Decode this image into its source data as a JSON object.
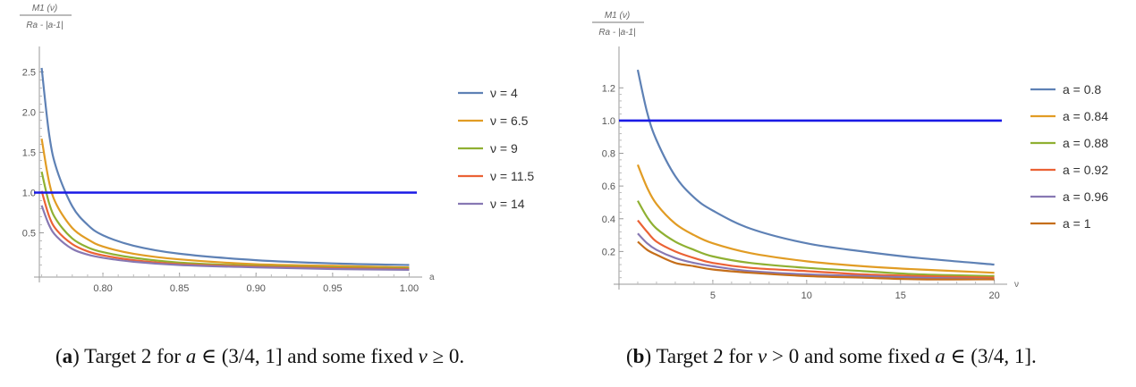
{
  "captions": {
    "a": {
      "tag": "a",
      "pre": " Target 2 for ",
      "var1": "a",
      "mid": " ∈ (3/4, 1] and some fixed ",
      "var2": "ν",
      "post": " ≥ 0."
    },
    "b": {
      "tag": "b",
      "pre": " Target 2 for ",
      "var1": "ν",
      "mid": " > 0 and some fixed ",
      "var2": "a",
      "post": " ∈ (3/4, 1]."
    }
  },
  "chart_data": [
    {
      "type": "line",
      "ylabel_num": "M1 (ν)",
      "ylabel_den": "Ra - |a-1|",
      "xlabel": "a",
      "xlim": [
        0.755,
        1.005
      ],
      "ylim": [
        -0.05,
        2.75
      ],
      "xticks": [
        "0.80",
        "0.85",
        "0.90",
        "0.95",
        "1.00"
      ],
      "xtick_values": [
        0.8,
        0.85,
        0.9,
        0.95,
        1.0
      ],
      "yticks": [
        "0.5",
        "1.0",
        "1.5",
        "2.0",
        "2.5"
      ],
      "ytick_values": [
        0.5,
        1.0,
        1.5,
        2.0,
        2.5
      ],
      "legend_position": "right",
      "reference_line": {
        "y": 1.0,
        "color": "#1a1ae6"
      },
      "series": [
        {
          "name": "ν = 4",
          "color": "#5e81b5",
          "x": [
            0.76,
            0.765,
            0.77,
            0.78,
            0.79,
            0.8,
            0.82,
            0.85,
            0.9,
            0.95,
            1.0
          ],
          "y": [
            2.55,
            1.71,
            1.28,
            0.83,
            0.6,
            0.47,
            0.34,
            0.24,
            0.16,
            0.12,
            0.1
          ]
        },
        {
          "name": "ν = 6.5",
          "color": "#e19c24",
          "x": [
            0.76,
            0.765,
            0.77,
            0.78,
            0.79,
            0.8,
            0.82,
            0.85,
            0.9,
            0.95,
            1.0
          ],
          "y": [
            1.67,
            1.12,
            0.84,
            0.56,
            0.42,
            0.33,
            0.24,
            0.17,
            0.11,
            0.09,
            0.07
          ]
        },
        {
          "name": "ν = 9",
          "color": "#8fb032",
          "x": [
            0.76,
            0.765,
            0.77,
            0.78,
            0.79,
            0.8,
            0.82,
            0.85,
            0.9,
            0.95,
            1.0
          ],
          "y": [
            1.26,
            0.86,
            0.65,
            0.43,
            0.32,
            0.26,
            0.19,
            0.13,
            0.09,
            0.07,
            0.06
          ]
        },
        {
          "name": "ν = 11.5",
          "color": "#eb6235",
          "x": [
            0.76,
            0.765,
            0.77,
            0.78,
            0.79,
            0.8,
            0.82,
            0.85,
            0.9,
            0.95,
            1.0
          ],
          "y": [
            1.02,
            0.7,
            0.53,
            0.36,
            0.27,
            0.22,
            0.16,
            0.11,
            0.08,
            0.06,
            0.05
          ]
        },
        {
          "name": "ν = 14",
          "color": "#8778b3",
          "x": [
            0.76,
            0.765,
            0.77,
            0.78,
            0.79,
            0.8,
            0.82,
            0.85,
            0.9,
            0.95,
            1.0
          ],
          "y": [
            0.84,
            0.59,
            0.45,
            0.3,
            0.23,
            0.19,
            0.14,
            0.1,
            0.07,
            0.05,
            0.04
          ]
        }
      ]
    },
    {
      "type": "line",
      "ylabel_num": "M1 (ν)",
      "ylabel_den": "Ra - |a-1|",
      "xlabel": "ν",
      "xlim": [
        0,
        20.4
      ],
      "ylim": [
        0,
        1.42
      ],
      "xticks": [
        "5",
        "10",
        "15",
        "20"
      ],
      "xtick_values": [
        5,
        10,
        15,
        20
      ],
      "yticks": [
        "0.2",
        "0.4",
        "0.6",
        "0.8",
        "1.0",
        "1.2"
      ],
      "ytick_values": [
        0.2,
        0.4,
        0.6,
        0.8,
        1.0,
        1.2
      ],
      "legend_position": "right",
      "reference_line": {
        "y": 1.0,
        "color": "#1a1ae6"
      },
      "series": [
        {
          "name": "a = 0.8",
          "color": "#5e81b5",
          "x": [
            1,
            1.5,
            2,
            3,
            4,
            5,
            7,
            10,
            13,
            16,
            20
          ],
          "y": [
            1.31,
            1.05,
            0.88,
            0.66,
            0.53,
            0.45,
            0.34,
            0.25,
            0.2,
            0.16,
            0.12
          ]
        },
        {
          "name": "a = 0.84",
          "color": "#e19c24",
          "x": [
            1,
            1.5,
            2,
            3,
            4,
            5,
            7,
            10,
            13,
            16,
            20
          ],
          "y": [
            0.73,
            0.59,
            0.49,
            0.37,
            0.3,
            0.25,
            0.19,
            0.14,
            0.11,
            0.09,
            0.07
          ]
        },
        {
          "name": "a = 0.88",
          "color": "#8fb032",
          "x": [
            1,
            1.5,
            2,
            3,
            4,
            5,
            7,
            10,
            13,
            16,
            20
          ],
          "y": [
            0.51,
            0.41,
            0.34,
            0.26,
            0.21,
            0.17,
            0.13,
            0.1,
            0.08,
            0.06,
            0.05
          ]
        },
        {
          "name": "a = 0.92",
          "color": "#eb6235",
          "x": [
            1,
            1.5,
            2,
            3,
            4,
            5,
            7,
            10,
            13,
            16,
            20
          ],
          "y": [
            0.39,
            0.32,
            0.26,
            0.2,
            0.16,
            0.13,
            0.1,
            0.08,
            0.06,
            0.05,
            0.04
          ]
        },
        {
          "name": "a = 0.96",
          "color": "#8778b3",
          "x": [
            1,
            1.5,
            2,
            3,
            4,
            5,
            7,
            10,
            13,
            16,
            20
          ],
          "y": [
            0.31,
            0.25,
            0.21,
            0.16,
            0.13,
            0.11,
            0.08,
            0.06,
            0.05,
            0.04,
            0.03
          ]
        },
        {
          "name": "a = 1",
          "color": "#c56e1a",
          "x": [
            1,
            1.5,
            2,
            3,
            4,
            5,
            7,
            10,
            13,
            16,
            20
          ],
          "y": [
            0.26,
            0.21,
            0.18,
            0.13,
            0.11,
            0.09,
            0.07,
            0.05,
            0.04,
            0.03,
            0.03
          ]
        }
      ]
    }
  ]
}
